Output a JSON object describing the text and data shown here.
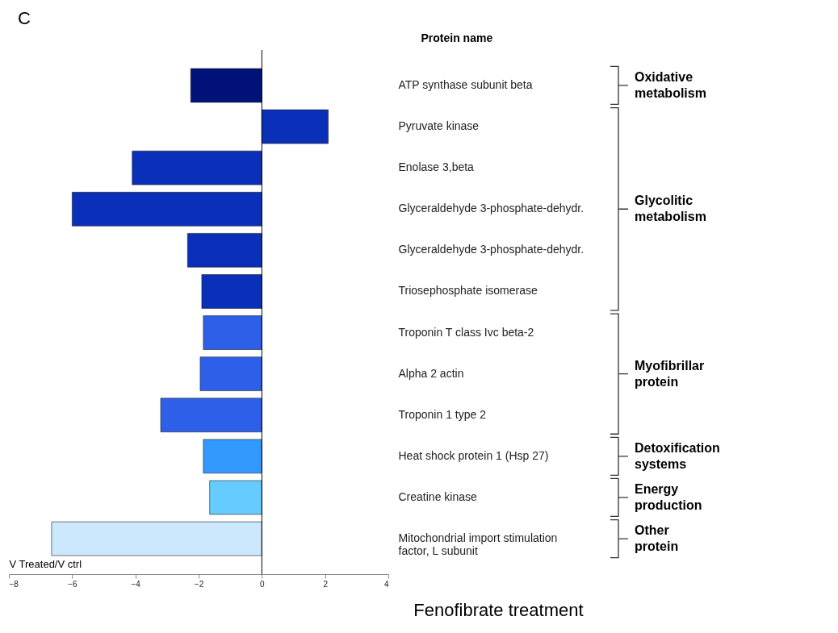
{
  "chart_data": {
    "type": "bar",
    "orientation": "horizontal",
    "title": "Fenofibrate treatment",
    "xlabel": "V Treated/V ctrl",
    "ylabel": "Protein name",
    "categories": [
      "ATP synthase subunit beta",
      "Pyruvate kinase",
      "Enolase 3,beta",
      "Glyceraldehyde 3-phosphate-dehydr.",
      "Glyceraldehyde 3-phosphate-dehydr.",
      "Triosephosphate isomerase",
      "Troponin T class Ivc beta-2",
      "Alpha 2 actin",
      "Troponin 1 type 2",
      "Heat shock protein 1 (Hsp 27)",
      "Creatine kinase",
      "Mitochondrial import stimulation factor, L subunit"
    ],
    "values": [
      -2.25,
      2.1,
      -4.1,
      -6.0,
      -2.35,
      -1.9,
      -1.85,
      -1.95,
      -3.2,
      -1.85,
      -1.65,
      -6.65
    ],
    "colors": [
      "#00127a",
      "#0a2fb8",
      "#0a2fb8",
      "#0a2fb8",
      "#0a2fb8",
      "#0a2fb8",
      "#2e5fe8",
      "#2e5fe8",
      "#2e5fe8",
      "#3399ff",
      "#66ccff",
      "#cce8fc"
    ],
    "xlim": [
      -8,
      4
    ],
    "xticks": [
      -8,
      -6,
      -4,
      -2,
      0,
      2,
      4
    ],
    "grid": false,
    "ref_lines": [
      {
        "axis": "x",
        "value": 0
      }
    ],
    "annotations": [
      "C",
      "Oxidative metabolism",
      "Glycolitic metabolism",
      "Myofibrillar protein",
      "Detoxification systems",
      "Energy production",
      "Other protein"
    ]
  }
}
